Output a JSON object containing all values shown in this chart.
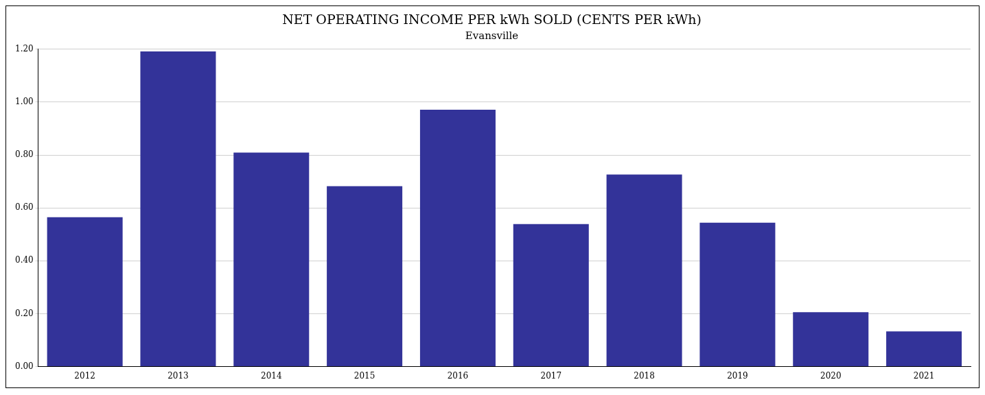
{
  "chart_data": {
    "type": "bar",
    "title": "NET OPERATING INCOME PER kWh SOLD (CENTS PER kWh)",
    "subtitle": "Evansville",
    "categories": [
      "2012",
      "2013",
      "2014",
      "2015",
      "2016",
      "2017",
      "2018",
      "2019",
      "2020",
      "2021"
    ],
    "values": [
      0.565,
      1.192,
      0.809,
      0.682,
      0.971,
      0.539,
      0.726,
      0.544,
      0.206,
      0.133
    ],
    "color": "#333399",
    "ylim": [
      0,
      1.2
    ],
    "yticks": [
      {
        "value": 0,
        "label": "0.00"
      },
      {
        "value": 0.2,
        "label": "0.20"
      },
      {
        "value": 0.4,
        "label": "0.40"
      },
      {
        "value": 0.6,
        "label": "0.60"
      },
      {
        "value": 0.8,
        "label": "0.80"
      },
      {
        "value": 1,
        "label": "1.00"
      },
      {
        "value": 1.2,
        "label": "1.20"
      }
    ],
    "grid": "y",
    "legend": false
  }
}
